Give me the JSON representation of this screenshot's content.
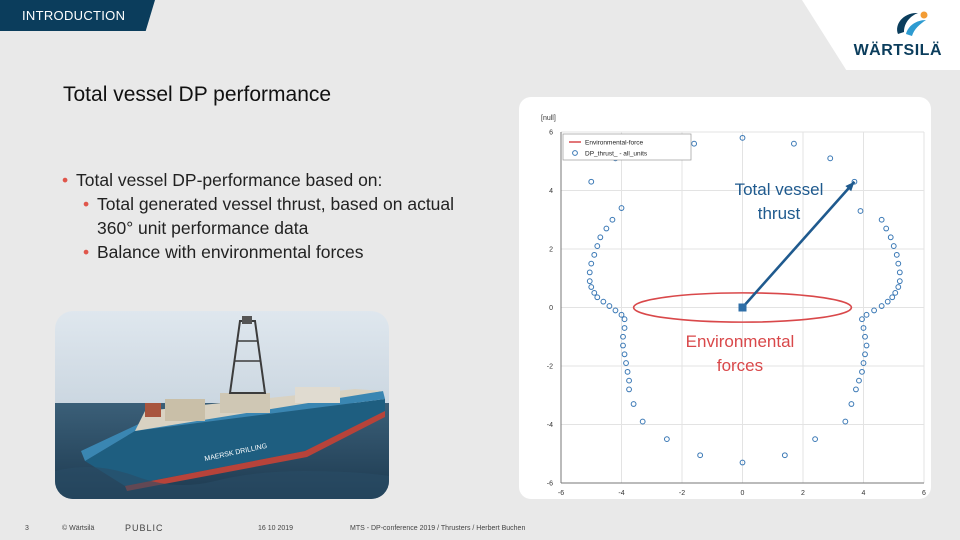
{
  "header": {
    "section_tab": "INTRODUCTION",
    "logo_text": "WÄRTSILÄ"
  },
  "slide": {
    "title": "Total vessel DP performance",
    "bullet_main": "Total vessel DP-performance based on:",
    "sub_bullets": [
      "Total generated vessel thrust, based on actual 360° unit performance data",
      "Balance with environmental forces"
    ]
  },
  "photo": {
    "hull_text": "MAERSK DRILLING"
  },
  "footer": {
    "page_number": "3",
    "copyright": "© Wärtsilä",
    "classification": "PUBLIC",
    "date": "16 10 2019",
    "source": "MTS - DP-conference 2019 / Thrusters / Herbert Buchen"
  },
  "chart_data": {
    "type": "scatter",
    "ylabel": "[null]",
    "xlim": [
      -6,
      6
    ],
    "ylim": [
      -6,
      6
    ],
    "xticks": [
      -6,
      -4,
      -2,
      0,
      2,
      4,
      6
    ],
    "yticks": [
      -6,
      -4,
      -2,
      0,
      2,
      4,
      6
    ],
    "grid": true,
    "legend_placement": "top-left",
    "legend": [
      "Environmental-force",
      "DP_thrust_ - all_units"
    ],
    "annotations": [
      "Total vessel thrust",
      "Environmental forces"
    ],
    "series": [
      {
        "name": "DP_thrust_ - all_units",
        "type": "scatter",
        "points": [
          [
            0.0,
            5.8
          ],
          [
            -1.6,
            5.6
          ],
          [
            1.7,
            5.6
          ],
          [
            -4.2,
            5.1
          ],
          [
            2.9,
            5.1
          ],
          [
            -5.0,
            4.3
          ],
          [
            3.7,
            4.3
          ],
          [
            -4.0,
            3.4
          ],
          [
            3.9,
            3.3
          ],
          [
            -4.3,
            3.0
          ],
          [
            4.6,
            3.0
          ],
          [
            -4.5,
            2.7
          ],
          [
            4.75,
            2.7
          ],
          [
            -4.7,
            2.4
          ],
          [
            4.9,
            2.4
          ],
          [
            -4.8,
            2.1
          ],
          [
            5.0,
            2.1
          ],
          [
            -4.9,
            1.8
          ],
          [
            5.1,
            1.8
          ],
          [
            -5.0,
            1.5
          ],
          [
            5.15,
            1.5
          ],
          [
            -5.05,
            1.2
          ],
          [
            5.2,
            1.2
          ],
          [
            -5.05,
            0.9
          ],
          [
            5.2,
            0.9
          ],
          [
            -5.0,
            0.7
          ],
          [
            5.15,
            0.7
          ],
          [
            -4.9,
            0.5
          ],
          [
            5.05,
            0.5
          ],
          [
            -4.8,
            0.35
          ],
          [
            4.95,
            0.35
          ],
          [
            -4.6,
            0.2
          ],
          [
            4.8,
            0.2
          ],
          [
            -4.4,
            0.05
          ],
          [
            4.6,
            0.05
          ],
          [
            -4.2,
            -0.1
          ],
          [
            4.35,
            -0.1
          ],
          [
            -4.0,
            -0.25
          ],
          [
            4.1,
            -0.25
          ],
          [
            -3.9,
            -0.4
          ],
          [
            3.95,
            -0.4
          ],
          [
            -3.9,
            -0.7
          ],
          [
            4.0,
            -0.7
          ],
          [
            -3.95,
            -1.0
          ],
          [
            4.05,
            -1.0
          ],
          [
            -3.95,
            -1.3
          ],
          [
            4.1,
            -1.3
          ],
          [
            -3.9,
            -1.6
          ],
          [
            4.05,
            -1.6
          ],
          [
            -3.85,
            -1.9
          ],
          [
            4.0,
            -1.9
          ],
          [
            -3.8,
            -2.2
          ],
          [
            3.95,
            -2.2
          ],
          [
            -3.75,
            -2.5
          ],
          [
            3.85,
            -2.5
          ],
          [
            -3.75,
            -2.8
          ],
          [
            3.75,
            -2.8
          ],
          [
            -3.6,
            -3.3
          ],
          [
            3.6,
            -3.3
          ],
          [
            -3.3,
            -3.9
          ],
          [
            3.4,
            -3.9
          ],
          [
            -2.5,
            -4.5
          ],
          [
            2.4,
            -4.5
          ],
          [
            -1.4,
            -5.05
          ],
          [
            1.4,
            -5.05
          ],
          [
            0.0,
            -5.3
          ]
        ]
      },
      {
        "name": "Environmental-force",
        "type": "ellipse",
        "center": [
          0,
          0
        ],
        "rx": 3.6,
        "ry": 0.5
      },
      {
        "name": "Total vessel thrust",
        "type": "vector",
        "from": [
          0,
          0
        ],
        "to": [
          3.7,
          4.3
        ]
      }
    ]
  }
}
